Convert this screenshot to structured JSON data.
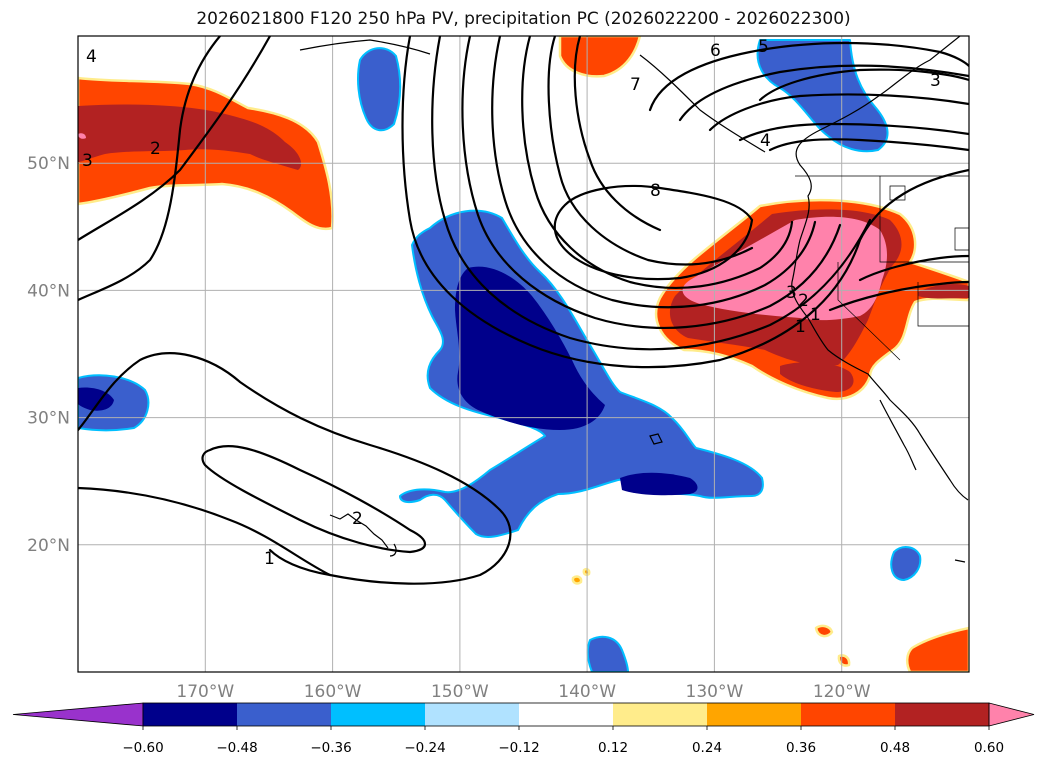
{
  "title": "2026021800 F120 250 hPa PV, precipitation PC (2026022200 - 2026022300)",
  "map": {
    "lon_range": [
      180,
      110
    ],
    "lat_range": [
      10,
      60
    ],
    "lon_ticks": [
      {
        "value": 170,
        "label": "170°W"
      },
      {
        "value": 160,
        "label": "160°W"
      },
      {
        "value": 150,
        "label": "150°W"
      },
      {
        "value": 140,
        "label": "140°W"
      },
      {
        "value": 130,
        "label": "130°W"
      },
      {
        "value": 120,
        "label": "120°W"
      }
    ],
    "lat_ticks": [
      {
        "value": 50,
        "label": "50°N"
      },
      {
        "value": 40,
        "label": "40°N"
      },
      {
        "value": 30,
        "label": "30°N"
      },
      {
        "value": 20,
        "label": "20°N"
      }
    ],
    "grid": true
  },
  "colorbar": {
    "levels": [
      "−0.60",
      "−0.48",
      "−0.36",
      "−0.24",
      "−0.12",
      "0.12",
      "0.24",
      "0.36",
      "0.48",
      "0.60"
    ],
    "colors": [
      "#9932cc",
      "#00008b",
      "#3a5fcd",
      "#00bfff",
      "#b0e2ff",
      "#ffffff",
      "#ffec8b",
      "#ffa500",
      "#ff4500",
      "#b22222",
      "#ff82ab"
    ],
    "extend": "both"
  },
  "contour_labels": [
    "4",
    "3",
    "2",
    "1",
    "2",
    "1",
    "8",
    "7",
    "6",
    "5",
    "4",
    "3",
    "3",
    "2",
    "1"
  ]
}
